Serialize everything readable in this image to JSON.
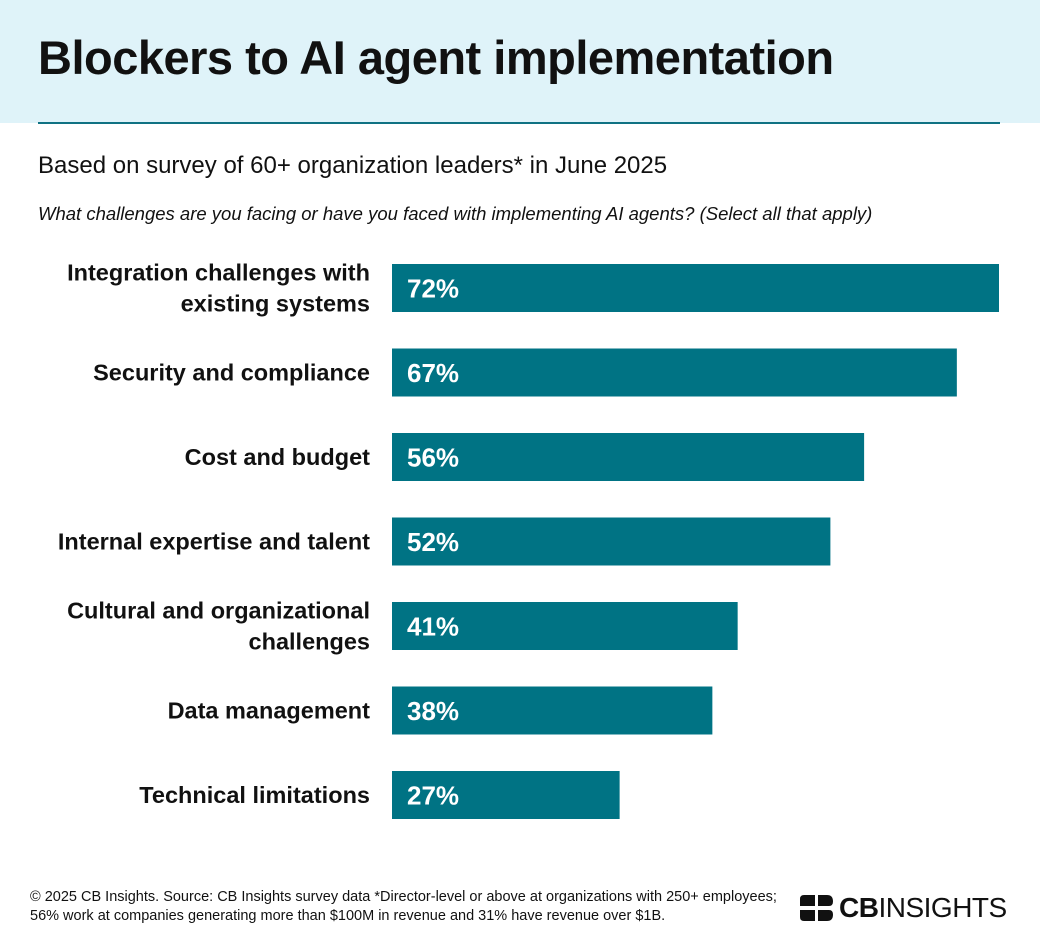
{
  "header": {
    "title": "Blockers to AI agent implementation"
  },
  "subtitle": "Based on survey of 60+ organization leaders* in June 2025",
  "question": "What challenges are you facing or have you faced with implementing AI agents? (Select all that apply)",
  "colors": {
    "bar": "#007384",
    "header_band": "#dff3f9",
    "rule": "#0f7283"
  },
  "chart_data": {
    "type": "bar",
    "orientation": "horizontal",
    "title": "Blockers to AI agent implementation",
    "xlabel": "",
    "ylabel": "",
    "xlim": [
      0,
      72
    ],
    "unit": "%",
    "categories": [
      [
        "Integration challenges with",
        "existing systems"
      ],
      [
        "Security and compliance"
      ],
      [
        "Cost and budget"
      ],
      [
        "Internal expertise and talent"
      ],
      [
        "Cultural and organizational",
        "challenges"
      ],
      [
        "Data management"
      ],
      [
        "Technical limitations"
      ]
    ],
    "values": [
      72,
      67,
      56,
      52,
      41,
      38,
      27
    ],
    "value_labels": [
      "72%",
      "67%",
      "56%",
      "52%",
      "41%",
      "38%",
      "27%"
    ]
  },
  "footer": {
    "note": "© 2025 CB Insights. Source: CB Insights survey data *Director-level or above at organizations with 250+ employees; 56% work at companies generating more than $100M in revenue and 31% have revenue over $1B.",
    "logo_bold": "CB",
    "logo_light": "INSIGHTS"
  }
}
